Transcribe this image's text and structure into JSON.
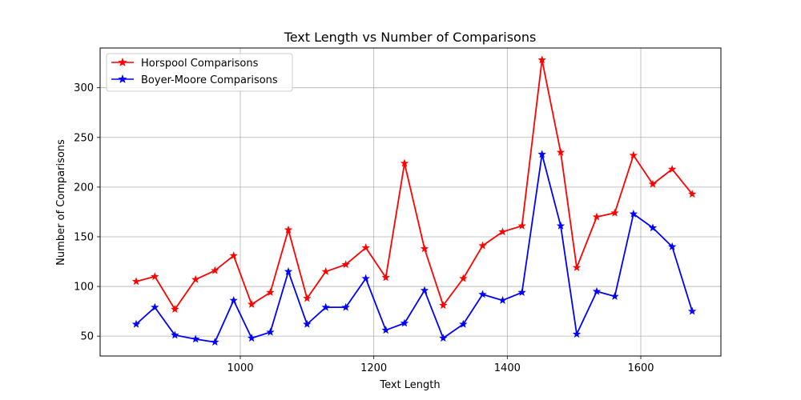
{
  "chart_data": {
    "type": "line",
    "title": "Text Length vs Number of Comparisons",
    "xlabel": "Text Length",
    "ylabel": "Number of Comparisons",
    "xlim": [
      790,
      1720
    ],
    "ylim": [
      30,
      340
    ],
    "xticks": [
      1000,
      1200,
      1400,
      1600
    ],
    "yticks": [
      50,
      100,
      150,
      200,
      250,
      300
    ],
    "grid": true,
    "legend_position": "top-left",
    "x": [
      844,
      872,
      902,
      933,
      962,
      990,
      1017,
      1045,
      1072,
      1100,
      1128,
      1158,
      1188,
      1218,
      1246,
      1276,
      1304,
      1334,
      1363,
      1393,
      1422,
      1452,
      1480,
      1504,
      1534,
      1561,
      1589,
      1618,
      1647,
      1677
    ],
    "series": [
      {
        "name": "Horspool Comparisons",
        "color": "#ff0000",
        "marker": "star",
        "values": [
          105,
          110,
          77,
          107,
          116,
          131,
          82,
          94,
          157,
          88,
          115,
          122,
          139,
          109,
          224,
          138,
          81,
          108,
          141,
          155,
          161,
          328,
          235,
          119,
          170,
          174,
          232,
          203,
          218,
          193
        ]
      },
      {
        "name": "Boyer-Moore Comparisons",
        "color": "#0000ff",
        "marker": "star",
        "values": [
          62,
          79,
          51,
          47,
          44,
          86,
          48,
          54,
          115,
          62,
          79,
          79,
          108,
          56,
          63,
          96,
          48,
          62,
          92,
          86,
          94,
          233,
          161,
          52,
          95,
          90,
          173,
          159,
          140,
          75
        ]
      }
    ]
  }
}
